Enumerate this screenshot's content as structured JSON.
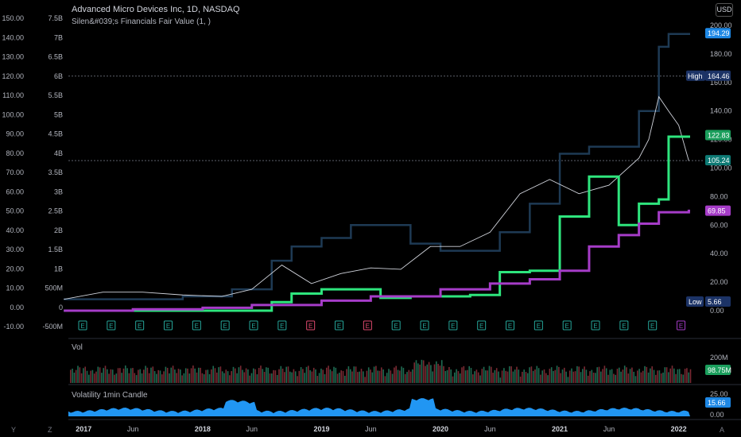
{
  "header": {
    "title": "Advanced Micro Devices Inc, 1D, NASDAQ",
    "indicator": "Silen&#039;s Financials Fair Value (1, )",
    "currency": "USD"
  },
  "colors": {
    "background": "#000000",
    "price_line": "#d1d4dc",
    "fair_value_green": "#2ee57d",
    "fair_value_purple": "#a63cc8",
    "upper_band": "#1e3a54",
    "volatility": "#2196f3",
    "high_tag": "#1c3366",
    "green_tag": "#1b9e5c",
    "purple_tag": "#a63cc8",
    "teal_tag": "#0d7a74",
    "blue_tag": "#1e88e5"
  },
  "axes": {
    "left_price_ticks": [
      "150.00",
      "140.00",
      "130.00",
      "120.00",
      "110.00",
      "100.00",
      "90.00",
      "80.00",
      "70.00",
      "60.00",
      "50.00",
      "40.00",
      "30.00",
      "20.00",
      "10.00",
      "0.00",
      "-10.00"
    ],
    "left_value_ticks": [
      "7.5B",
      "7B",
      "6.5B",
      "6B",
      "5.5B",
      "5B",
      "4.5B",
      "4B",
      "3.5B",
      "3B",
      "2.5B",
      "2B",
      "1.5B",
      "1B",
      "500M",
      "0",
      "-500M"
    ],
    "right_ticks": [
      "200.00",
      "180.00",
      "160.00",
      "140.00",
      "120.00",
      "100.00",
      "80.00",
      "60.00",
      "40.00",
      "20.00",
      "0.00"
    ],
    "x_ticks": [
      "2017",
      "Jun",
      "2018",
      "Jun",
      "2019",
      "Jun",
      "2020",
      "Jun",
      "2021",
      "Jun",
      "2022"
    ],
    "vol_ticks": [
      "200M"
    ],
    "volatility_ticks": [
      "25.00",
      "0.00"
    ]
  },
  "tags": {
    "high_label": "High",
    "high_value": "164.46",
    "low_label": "Low",
    "low_value": "5.66",
    "upper_value": "194.29",
    "green_value": "122.83",
    "teal_value": "105.24",
    "purple_value": "69.85",
    "vol_value": "98.75M",
    "volatility_value": "15.66"
  },
  "panes": {
    "vol_label": "Vol",
    "volatility_label": "Volatility 1min Candle"
  },
  "earnings_markers": [
    "E",
    "E",
    "E",
    "E",
    "E",
    "E",
    "E",
    "E",
    "E",
    "E",
    "E",
    "E",
    "E",
    "E",
    "E",
    "E",
    "E",
    "E",
    "E",
    "E",
    "E",
    "E"
  ],
  "nav_letters": [
    "Y",
    "Z",
    "A"
  ],
  "chart_data": {
    "type": "line",
    "title": "Advanced Micro Devices Inc, 1D, NASDAQ",
    "x_range": [
      "2016-11",
      "2022-02"
    ],
    "ylim": [
      -10,
      200
    ],
    "series": [
      {
        "name": "",
        "role": "price",
        "x": [
          "2016-11",
          "2017-03",
          "2017-07",
          "2017-11",
          "2018-03",
          "2018-06",
          "2018-09",
          "2018-12",
          "2019-03",
          "2019-06",
          "2019-09",
          "2019-12",
          "2020-03",
          "2020-06",
          "2020-09",
          "2020-12",
          "2021-03",
          "2021-06",
          "2021-09",
          "2021-10",
          "2021-11",
          "2021-12",
          "2022-01",
          "2022-02"
        ],
        "y": [
          8,
          13,
          13,
          11,
          10,
          15,
          32,
          19,
          26,
          30,
          29,
          45,
          45,
          55,
          82,
          92,
          82,
          88,
          107,
          120,
          150,
          140,
          130,
          105
        ]
      },
      {
        "name": "",
        "role": "upper band",
        "x": [
          "2016-11",
          "2017-11",
          "2018-04",
          "2018-08",
          "2018-10",
          "2019-01",
          "2019-04",
          "2019-07",
          "2019-10",
          "2020-01",
          "2020-04",
          "2020-07",
          "2020-10",
          "2021-01",
          "2021-04",
          "2021-07",
          "2021-09",
          "2021-11",
          "2021-12",
          "2022-01",
          "2022-02"
        ],
        "y": [
          8,
          10,
          15,
          35,
          45,
          51,
          60,
          60,
          47,
          42,
          42,
          55,
          75,
          110,
          115,
          115,
          140,
          185,
          194,
          194,
          194
        ]
      },
      {
        "name": "",
        "role": "fair value green",
        "x": [
          "2016-11",
          "2018-06",
          "2018-08",
          "2018-10",
          "2019-01",
          "2019-04",
          "2019-07",
          "2019-10",
          "2020-01",
          "2020-04",
          "2020-07",
          "2020-10",
          "2021-01",
          "2021-04",
          "2021-07",
          "2021-09",
          "2021-11",
          "2021-12",
          "2022-02"
        ],
        "y": [
          0,
          0,
          6,
          12,
          15,
          15,
          9,
          10,
          10,
          11,
          27,
          28,
          66,
          94,
          60,
          75,
          78,
          122,
          122
        ]
      },
      {
        "name": "",
        "role": "fair value purple",
        "x": [
          "2016-11",
          "2017-06",
          "2018-01",
          "2018-06",
          "2019-01",
          "2019-06",
          "2020-01",
          "2020-06",
          "2020-10",
          "2021-01",
          "2021-04",
          "2021-07",
          "2021-09",
          "2021-11",
          "2022-02"
        ],
        "y": [
          0,
          1,
          2,
          4,
          7,
          10,
          15,
          19,
          22,
          28,
          45,
          53,
          61,
          69,
          70
        ]
      }
    ],
    "volume_last": "98.75M",
    "volatility_last": "15.66"
  }
}
